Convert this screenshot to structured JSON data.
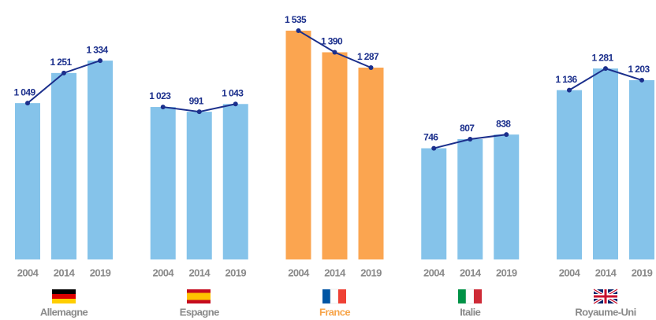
{
  "chart_data": {
    "type": "bar",
    "line_color": "#1b2f8c",
    "series": [
      {
        "name": "Allemagne",
        "categories": [
          "2004",
          "2014",
          "2019"
        ],
        "values": [
          1049,
          1251,
          1334
        ],
        "value_labels": [
          "1 049",
          "1 251",
          "1 334"
        ],
        "color": "#85c3ea",
        "label_color": "#8a8a8a"
      },
      {
        "name": "Espagne",
        "categories": [
          "2004",
          "2014",
          "2019"
        ],
        "values": [
          1023,
          991,
          1043
        ],
        "value_labels": [
          "1 023",
          "991",
          "1 043"
        ],
        "color": "#85c3ea",
        "label_color": "#8a8a8a"
      },
      {
        "name": "France",
        "categories": [
          "2004",
          "2014",
          "2019"
        ],
        "values": [
          1535,
          1390,
          1287
        ],
        "value_labels": [
          "1 535",
          "1 390",
          "1 287"
        ],
        "color": "#fba550",
        "label_color": "#f7a54a"
      },
      {
        "name": "Italie",
        "categories": [
          "2004",
          "2014",
          "2019"
        ],
        "values": [
          746,
          807,
          838
        ],
        "value_labels": [
          "746",
          "807",
          "838"
        ],
        "color": "#85c3ea",
        "label_color": "#8a8a8a"
      },
      {
        "name": "Royaume-Uni",
        "categories": [
          "2004",
          "2014",
          "2019"
        ],
        "values": [
          1136,
          1281,
          1203
        ],
        "value_labels": [
          "1 136",
          "1 281",
          "1 203"
        ],
        "color": "#85c3ea",
        "label_color": "#8a8a8a"
      }
    ]
  }
}
